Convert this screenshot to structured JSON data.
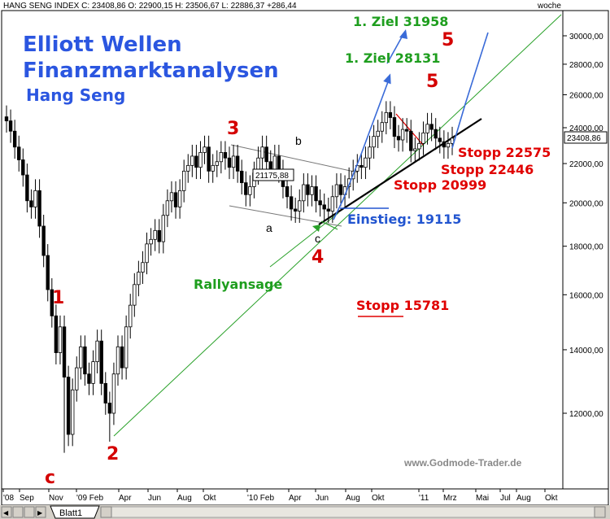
{
  "chart_data": {
    "type": "candlestick",
    "title": "Elliott Wellen",
    "subtitle": "Finanzmarktanalysen",
    "instrument": "Hang Seng",
    "header": "HANG SENG INDEX C: 23408,86 O: 22900,15 H: 23506,67 L: 22886,37 +286,44",
    "period": "woche",
    "source": "www.Godmode-Trader.de",
    "last_price_label": "23408,86",
    "yscale": "log",
    "ylim": [
      10000,
      32000
    ],
    "y_ticks": [
      "30000,00",
      "28000,00",
      "26000,00",
      "24000,00",
      "22000,00",
      "20000,00",
      "18000,00",
      "16000,00",
      "14000,00",
      "12000,00"
    ],
    "x_ticks": [
      "'08",
      "Sep",
      "Nov",
      "'09 Feb",
      "Apr",
      "Jun",
      "Aug",
      "Okt",
      "'10 Feb",
      "Apr",
      "Jun",
      "Aug",
      "Okt",
      "'11",
      "Mrz",
      "Mai",
      "Jul",
      "Aug",
      "Okt"
    ],
    "grid": false,
    "color_up": "#ffffff",
    "color_down": "#000000",
    "approx_weekly_close": [
      24400,
      23800,
      22900,
      22200,
      21400,
      20100,
      19800,
      20600,
      18900,
      17600,
      16200,
      15200,
      13900,
      14800,
      13100,
      11400,
      12700,
      13400,
      14100,
      13200,
      12900,
      13600,
      14300,
      12900,
      12300,
      12000,
      13200,
      14100,
      13400,
      14800,
      15600,
      16400,
      16900,
      17300,
      18100,
      18300,
      18700,
      18200,
      19400,
      20100,
      20500,
      19800,
      20600,
      21600,
      21900,
      22400,
      21800,
      22600,
      22900,
      21600,
      21900,
      22100,
      22600,
      22300,
      21800,
      22400,
      21600,
      21000,
      20400,
      20800,
      21500,
      22300,
      22900,
      22100,
      21700,
      22400,
      21600,
      20800,
      20300,
      19700,
      19600,
      20100,
      20900,
      20400,
      20800,
      20100,
      19900,
      19700,
      19600,
      20300,
      20900,
      20400,
      20800,
      21200,
      21600,
      21900,
      21800,
      22300,
      22900,
      23500,
      23800,
      24300,
      24900,
      24600,
      23500,
      23300,
      23900,
      23800,
      22700,
      22800,
      23100,
      23700,
      24200,
      23900,
      23400,
      23200,
      22900,
      23100,
      23400
    ],
    "annotations": {
      "waves": [
        "1",
        "c",
        "2",
        "3",
        "4",
        "5",
        "5"
      ],
      "subwaves": [
        "a",
        "b",
        "c"
      ],
      "label_box": "21175,88",
      "targets": [
        "1. Ziel 31958",
        "1. Ziel 28131"
      ],
      "stops": [
        "Stopp 22575",
        "Stopp 22446",
        "Stopp 20999",
        "Stopp 15781"
      ],
      "entry": "Einstieg: 19115",
      "rally": "Rallyansage"
    }
  },
  "tabs": {
    "sheet": "Blatt1"
  },
  "colors": {
    "title_blue": "#2b56e0",
    "wave_red": "#d40000",
    "stop_red": "#e00000",
    "target_green": "#1e9e1e",
    "trend_green": "#28a028",
    "arrow_blue": "#3a6bd8",
    "entry_blue": "#2255d0"
  }
}
